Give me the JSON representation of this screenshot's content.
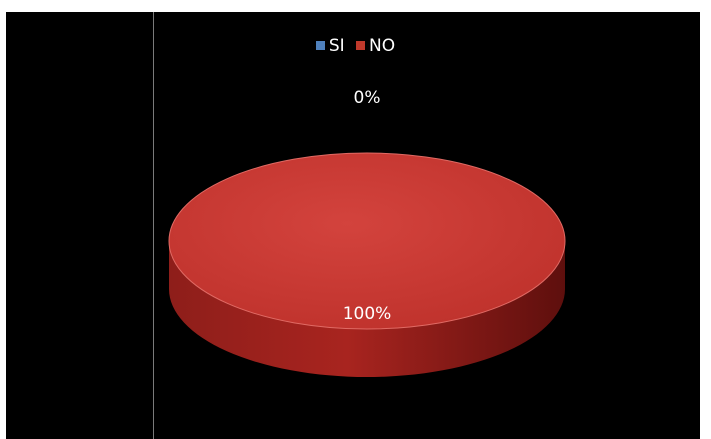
{
  "chart_data": {
    "type": "pie",
    "title": "",
    "categories": [
      "SI",
      "NO"
    ],
    "values": [
      0,
      100
    ],
    "data_labels": [
      "0%",
      "100%"
    ],
    "colors": [
      "#4f81bd",
      "#c0392b"
    ],
    "legend_position": "top",
    "three_d": true
  }
}
